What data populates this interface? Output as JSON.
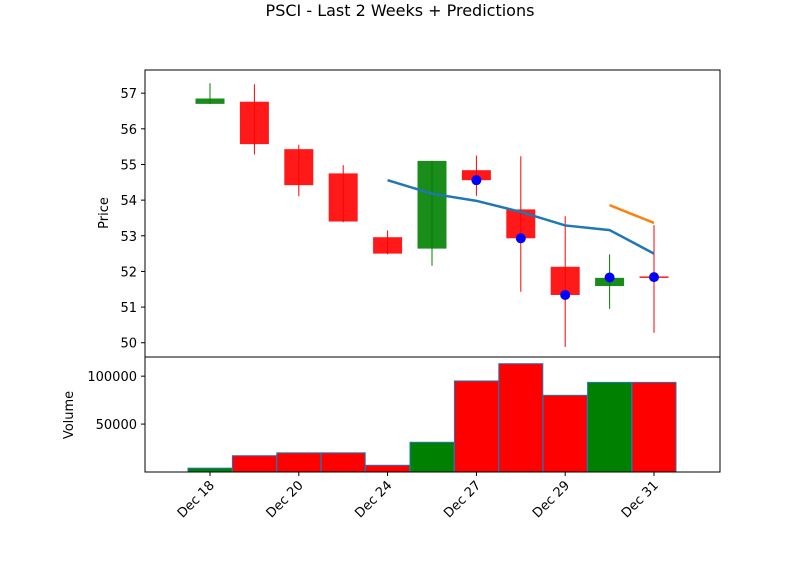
{
  "chart_data": {
    "type": "candlestick",
    "title": "PSCI - Last 2 Weeks + Predictions",
    "price_panel": {
      "ylabel": "Price",
      "ylim": [
        49.6,
        57.65
      ],
      "yticks": [
        50,
        51,
        52,
        53,
        54,
        55,
        56,
        57
      ],
      "candles": [
        {
          "open": 56.7,
          "high": 57.28,
          "low": 56.7,
          "close": 56.85,
          "dir": "up"
        },
        {
          "open": 56.76,
          "high": 57.25,
          "low": 55.28,
          "close": 55.57,
          "dir": "down"
        },
        {
          "open": 55.43,
          "high": 55.55,
          "low": 54.11,
          "close": 54.42,
          "dir": "down"
        },
        {
          "open": 54.75,
          "high": 54.98,
          "low": 53.38,
          "close": 53.4,
          "dir": "down"
        },
        {
          "open": 52.96,
          "high": 53.15,
          "low": 52.48,
          "close": 52.5,
          "dir": "down"
        },
        {
          "open": 52.64,
          "high": 55.1,
          "low": 52.16,
          "close": 55.1,
          "dir": "up"
        },
        {
          "open": 54.84,
          "high": 55.25,
          "low": 54.12,
          "close": 54.56,
          "dir": "down"
        },
        {
          "open": 53.74,
          "high": 55.23,
          "low": 51.43,
          "close": 52.93,
          "dir": "down"
        },
        {
          "open": 52.13,
          "high": 53.55,
          "low": 49.88,
          "close": 51.34,
          "dir": "down"
        },
        {
          "open": 51.59,
          "high": 52.48,
          "low": 50.95,
          "close": 51.82,
          "dir": "up"
        },
        {
          "open": 51.86,
          "high": 53.3,
          "low": 50.28,
          "close": 51.83,
          "dir": "down"
        }
      ],
      "blue_line": {
        "start_index": 4,
        "values": [
          54.56,
          54.18,
          53.98,
          53.67,
          53.29,
          53.16,
          52.5
        ]
      },
      "orange_line": {
        "start_index": 9,
        "values": [
          53.86,
          53.36
        ]
      },
      "markers": [
        {
          "index": 6,
          "value": 54.56
        },
        {
          "index": 7,
          "value": 52.93
        },
        {
          "index": 8,
          "value": 51.34
        },
        {
          "index": 9,
          "value": 51.83
        },
        {
          "index": 10,
          "value": 51.84
        }
      ]
    },
    "volume_panel": {
      "ylabel": "Volume",
      "ylim": [
        0,
        120000
      ],
      "yticks": [
        50000,
        100000
      ],
      "yticklabels": [
        "50000",
        "100000"
      ],
      "values": [
        4000,
        17000,
        20000,
        20000,
        7000,
        31000,
        95000,
        113000,
        80000,
        93500,
        93500
      ],
      "dirs": [
        "up",
        "down",
        "down",
        "down",
        "down",
        "up",
        "down",
        "down",
        "down",
        "up",
        "down"
      ]
    },
    "x_tick_labels": [
      {
        "index": 0,
        "label": "Dec 18"
      },
      {
        "index": 2,
        "label": "Dec 20"
      },
      {
        "index": 4,
        "label": "Dec 24"
      },
      {
        "index": 6,
        "label": "Dec 27"
      },
      {
        "index": 8,
        "label": "Dec 29"
      },
      {
        "index": 10,
        "label": "Dec 31"
      }
    ],
    "colors": {
      "up": "#008000",
      "down": "#ff0000",
      "blue_line": "#1f77b4",
      "orange_line": "#ff7f0e",
      "marker": "#0000ff"
    }
  }
}
